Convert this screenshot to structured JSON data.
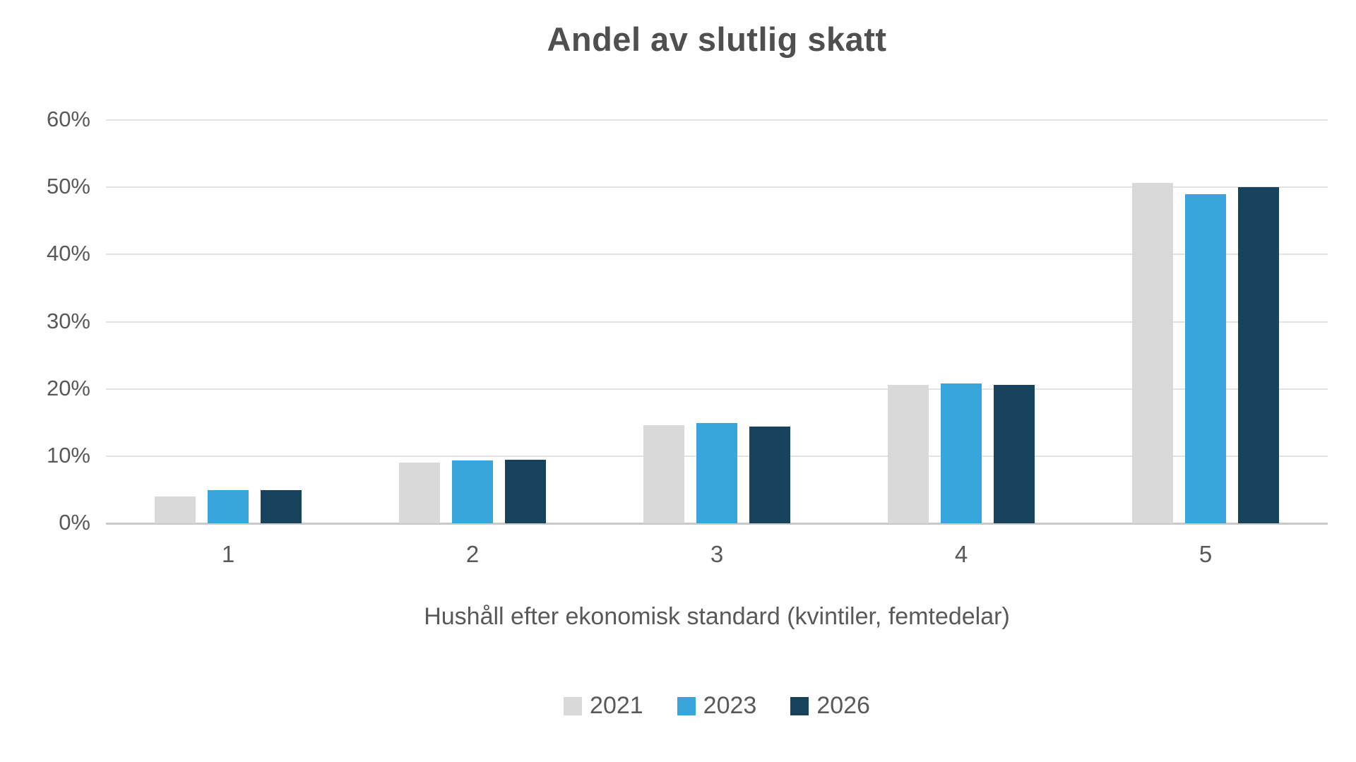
{
  "chart_data": {
    "type": "bar",
    "title": "Andel av slutlig skatt",
    "xlabel": "Hushåll efter ekonomisk standard (kvintiler, femtedelar)",
    "ylabel": "",
    "categories": [
      "1",
      "2",
      "3",
      "4",
      "5"
    ],
    "series": [
      {
        "name": "2021",
        "color": "#d9d9d9",
        "values": [
          4.0,
          9.0,
          14.6,
          20.6,
          50.7
        ]
      },
      {
        "name": "2023",
        "color": "#38a6dd",
        "values": [
          4.9,
          9.4,
          14.9,
          20.8,
          49.0
        ]
      },
      {
        "name": "2026",
        "color": "#17445c",
        "values": [
          4.9,
          9.5,
          14.4,
          20.6,
          50.0
        ]
      }
    ],
    "ylim": [
      0,
      60
    ],
    "y_tick_step": 10,
    "y_tick_labels": [
      "0%",
      "10%",
      "20%",
      "30%",
      "40%",
      "50%",
      "60%"
    ],
    "grid": "horizontal",
    "gridline_color": "#e3e3e3",
    "axis_line_color": "#c9c9c9",
    "text_color": "#595959",
    "legend_position": "bottom"
  }
}
